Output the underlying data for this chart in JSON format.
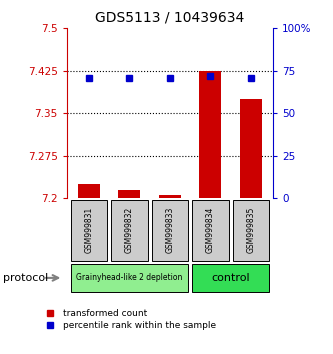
{
  "title": "GDS5113 / 10439634",
  "samples": [
    "GSM999831",
    "GSM999832",
    "GSM999833",
    "GSM999834",
    "GSM999835"
  ],
  "red_values": [
    7.225,
    7.215,
    7.205,
    7.425,
    7.375
  ],
  "blue_values": [
    71,
    71,
    71,
    72,
    71
  ],
  "ylim_left": [
    7.2,
    7.5
  ],
  "ylim_right": [
    0,
    100
  ],
  "yticks_left": [
    7.2,
    7.275,
    7.35,
    7.425,
    7.5
  ],
  "yticks_right": [
    0,
    25,
    50,
    75,
    100
  ],
  "ytick_labels_left": [
    "7.2",
    "7.275",
    "7.35",
    "7.425",
    "7.5"
  ],
  "ytick_labels_right": [
    "0",
    "25",
    "50",
    "75",
    "100%"
  ],
  "groups": [
    {
      "label": "Grainyhead-like 2 depletion",
      "indices": [
        0,
        1,
        2
      ],
      "color": "#90EE90"
    },
    {
      "label": "control",
      "indices": [
        3,
        4
      ],
      "color": "#33DD55"
    }
  ],
  "protocol_label": "protocol",
  "bar_color": "#CC0000",
  "dot_color": "#0000CC",
  "bar_width": 0.55,
  "sample_box_color": "#CCCCCC",
  "legend_red_label": "transformed count",
  "legend_blue_label": "percentile rank within the sample",
  "grid_lines": [
    7.275,
    7.35,
    7.425
  ],
  "title_fontsize": 10
}
